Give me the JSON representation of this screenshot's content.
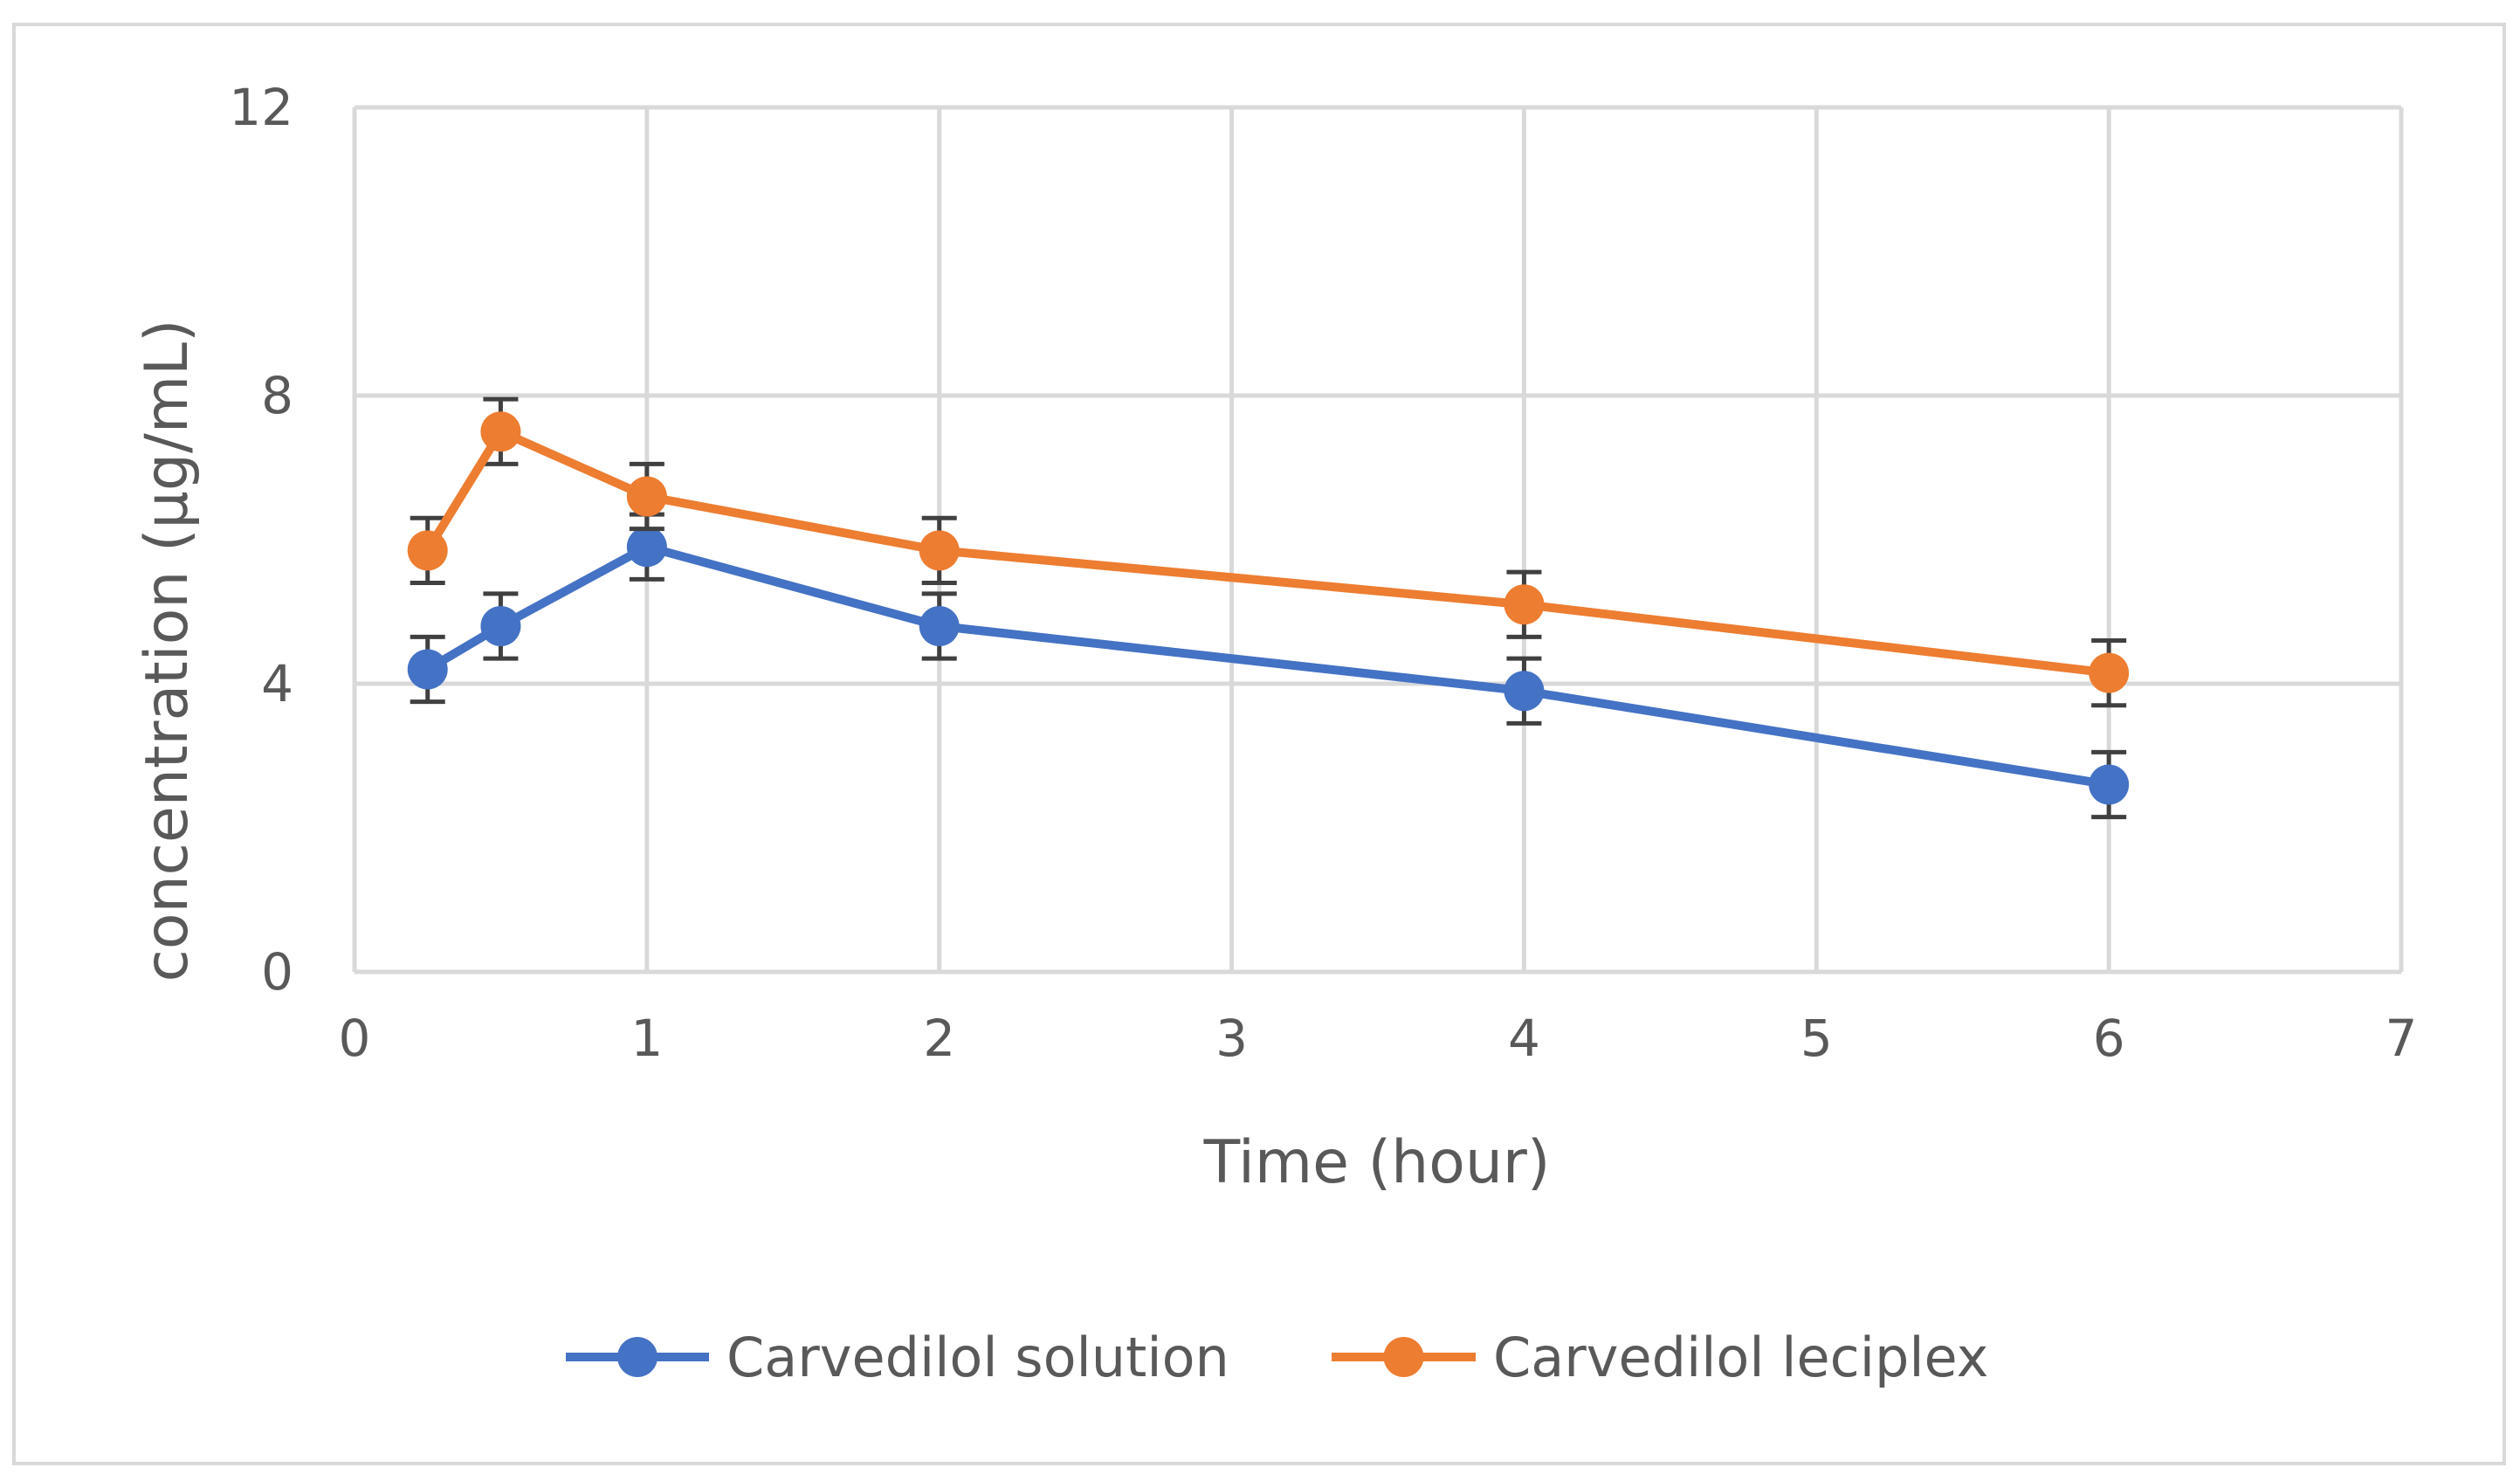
{
  "chart_data": {
    "type": "line",
    "title": "",
    "xlabel": "Time (hour)",
    "ylabel": "concentration (µg/mL)",
    "xlim": [
      0,
      7
    ],
    "ylim": [
      0,
      12
    ],
    "xticks": [
      0,
      1,
      2,
      3,
      4,
      5,
      6,
      7
    ],
    "yticks": [
      0,
      4,
      8,
      12
    ],
    "xtick_labels": [
      "0",
      "1",
      "2",
      "3",
      "4",
      "5",
      "6",
      "7"
    ],
    "ytick_labels": [
      "0",
      "4",
      "8",
      "12"
    ],
    "grid": true,
    "legend_position": "bottom",
    "series": [
      {
        "name": "Carvedilol solution",
        "color": "#4472C4",
        "x": [
          0.25,
          0.5,
          1,
          2,
          4,
          6
        ],
        "y": [
          4.2,
          4.8,
          5.9,
          4.8,
          3.9,
          2.6
        ],
        "error": [
          0.45,
          0.45,
          0.45,
          0.45,
          0.45,
          0.45
        ]
      },
      {
        "name": "Carvedilol leciplex",
        "color": "#ED7D31",
        "x": [
          0.25,
          0.5,
          1,
          2,
          4,
          6
        ],
        "y": [
          5.85,
          7.5,
          6.6,
          5.85,
          5.1,
          4.15
        ],
        "error": [
          0.45,
          0.45,
          0.45,
          0.45,
          0.45,
          0.45
        ]
      }
    ]
  }
}
